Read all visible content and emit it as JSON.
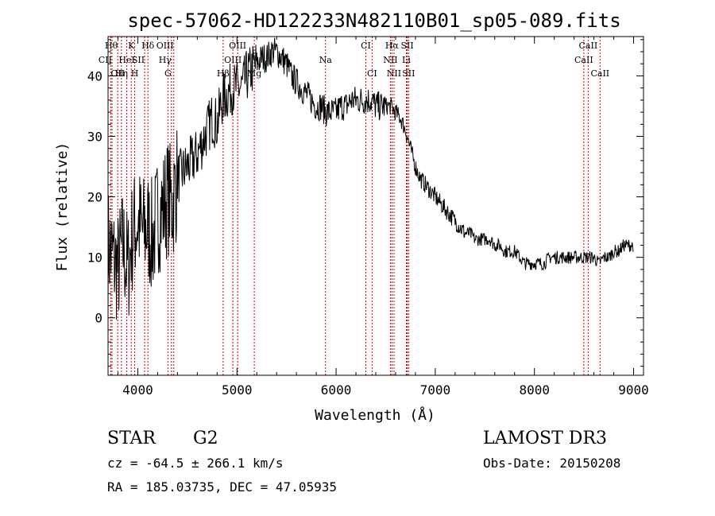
{
  "chart_data": {
    "type": "line",
    "title": "spec-57062-HD122233N482110B01_sp05-089.fits",
    "xlabel": "Wavelength (Å)",
    "ylabel": "Flux (relative)",
    "xlim": [
      3700,
      9100
    ],
    "ylim": [
      -9.5,
      46.5
    ],
    "xticks": [
      4000,
      5000,
      6000,
      7000,
      8000,
      9000
    ],
    "yticks": [
      0,
      10,
      20,
      30,
      40
    ],
    "spectrum": {
      "x": [
        3700,
        3750,
        3800,
        3850,
        3900,
        3950,
        4000,
        4050,
        4100,
        4150,
        4200,
        4250,
        4300,
        4350,
        4400,
        4450,
        4500,
        4550,
        4600,
        4650,
        4700,
        4750,
        4800,
        4850,
        4900,
        4950,
        5000,
        5050,
        5100,
        5150,
        5200,
        5250,
        5300,
        5350,
        5400,
        5450,
        5500,
        5550,
        5600,
        5650,
        5700,
        5750,
        5800,
        5850,
        5900,
        5950,
        6000,
        6050,
        6100,
        6150,
        6200,
        6250,
        6300,
        6350,
        6400,
        6450,
        6500,
        6550,
        6600,
        6650,
        6700,
        6750,
        6800,
        6850,
        6900,
        6950,
        7000,
        7050,
        7100,
        7150,
        7200,
        7250,
        7300,
        7350,
        7400,
        7450,
        7500,
        7550,
        7600,
        7650,
        7700,
        7750,
        7800,
        7850,
        7900,
        7950,
        8000,
        8050,
        8100,
        8150,
        8200,
        8250,
        8300,
        8350,
        8400,
        8450,
        8500,
        8550,
        8600,
        8650,
        8700,
        8750,
        8800,
        8850,
        8900,
        8950,
        9000
      ],
      "flux": [
        12,
        10,
        8,
        12,
        8,
        14,
        16,
        14,
        15,
        13,
        17,
        18,
        20,
        19,
        23,
        24,
        25,
        26,
        27,
        29,
        31,
        33,
        32,
        36,
        37,
        38,
        38,
        38,
        40,
        41,
        42,
        43,
        43,
        44,
        44,
        43,
        42,
        40,
        39,
        38,
        37,
        36,
        35,
        35,
        34,
        34,
        34,
        35,
        35,
        36,
        36,
        36,
        36,
        36,
        35,
        35,
        35,
        35,
        34,
        33,
        31,
        28,
        25,
        23,
        22,
        21,
        20,
        19,
        18,
        17,
        16,
        15,
        14,
        14,
        13,
        13,
        13,
        13,
        12,
        12,
        11,
        11,
        11,
        10,
        9,
        9,
        9,
        9,
        9,
        10,
        10,
        10,
        10,
        10,
        10,
        10,
        10,
        10,
        10,
        9,
        10,
        10,
        11,
        11,
        12,
        12,
        12
      ]
    },
    "line_markers": [
      {
        "label": "Hθ",
        "x": 3798,
        "row": 0,
        "align": "right"
      },
      {
        "label": "CII",
        "x": 3740,
        "row": 1,
        "align": "right"
      },
      {
        "label": "OII",
        "x": 3727,
        "row": 2,
        "align": "left"
      },
      {
        "label": "K",
        "x": 3934,
        "row": 0,
        "align": "center"
      },
      {
        "label": "HeI",
        "x": 3889,
        "row": 1,
        "align": "center"
      },
      {
        "label": "Hη",
        "x": 3835,
        "row": 2,
        "align": "center"
      },
      {
        "label": "Hδ",
        "x": 4102,
        "row": 0,
        "align": "center"
      },
      {
        "label": "SII",
        "x": 4069,
        "row": 1,
        "align": "right"
      },
      {
        "label": "H",
        "x": 3969,
        "row": 2,
        "align": "center"
      },
      {
        "label": "OIII",
        "x": 4363,
        "row": 0,
        "align": "right"
      },
      {
        "label": "Hγ",
        "x": 4340,
        "row": 1,
        "align": "right"
      },
      {
        "label": "G",
        "x": 4304,
        "row": 2,
        "align": "center"
      },
      {
        "label": "OIII",
        "x": 5007,
        "row": 0,
        "align": "center"
      },
      {
        "label": "OIII",
        "x": 4959,
        "row": 1,
        "align": "center"
      },
      {
        "label": "Hβ",
        "x": 4861,
        "row": 2,
        "align": "center"
      },
      {
        "label": "Mg",
        "x": 5175,
        "row": 2,
        "align": "center"
      },
      {
        "label": "Na",
        "x": 5893,
        "row": 1,
        "align": "center"
      },
      {
        "label": "CI",
        "x": 6300,
        "row": 0,
        "align": "center"
      },
      {
        "label": "CI",
        "x": 6363,
        "row": 2,
        "align": "center"
      },
      {
        "label": "Hα",
        "x": 6563,
        "row": 0,
        "align": "center"
      },
      {
        "label": "NII",
        "x": 6548,
        "row": 1,
        "align": "center"
      },
      {
        "label": "NII",
        "x": 6584,
        "row": 2,
        "align": "center"
      },
      {
        "label": "SII",
        "x": 6717,
        "row": 0,
        "align": "center"
      },
      {
        "label": "Li",
        "x": 6708,
        "row": 1,
        "align": "center"
      },
      {
        "label": "SII",
        "x": 6731,
        "row": 2,
        "align": "center"
      },
      {
        "label": "CaII",
        "x": 8542,
        "row": 0,
        "align": "center"
      },
      {
        "label": "CaII",
        "x": 8498,
        "row": 1,
        "align": "center"
      },
      {
        "label": "CaII",
        "x": 8662,
        "row": 2,
        "align": "center"
      }
    ]
  },
  "info": {
    "object_class": "STAR",
    "subclass": "G2",
    "survey": "LAMOST DR3",
    "redshift": "cz = -64.5 ± 266.1 km/s",
    "obs_date": "Obs-Date: 20150208",
    "coords": "RA = 185.03735, DEC =  47.05935"
  }
}
